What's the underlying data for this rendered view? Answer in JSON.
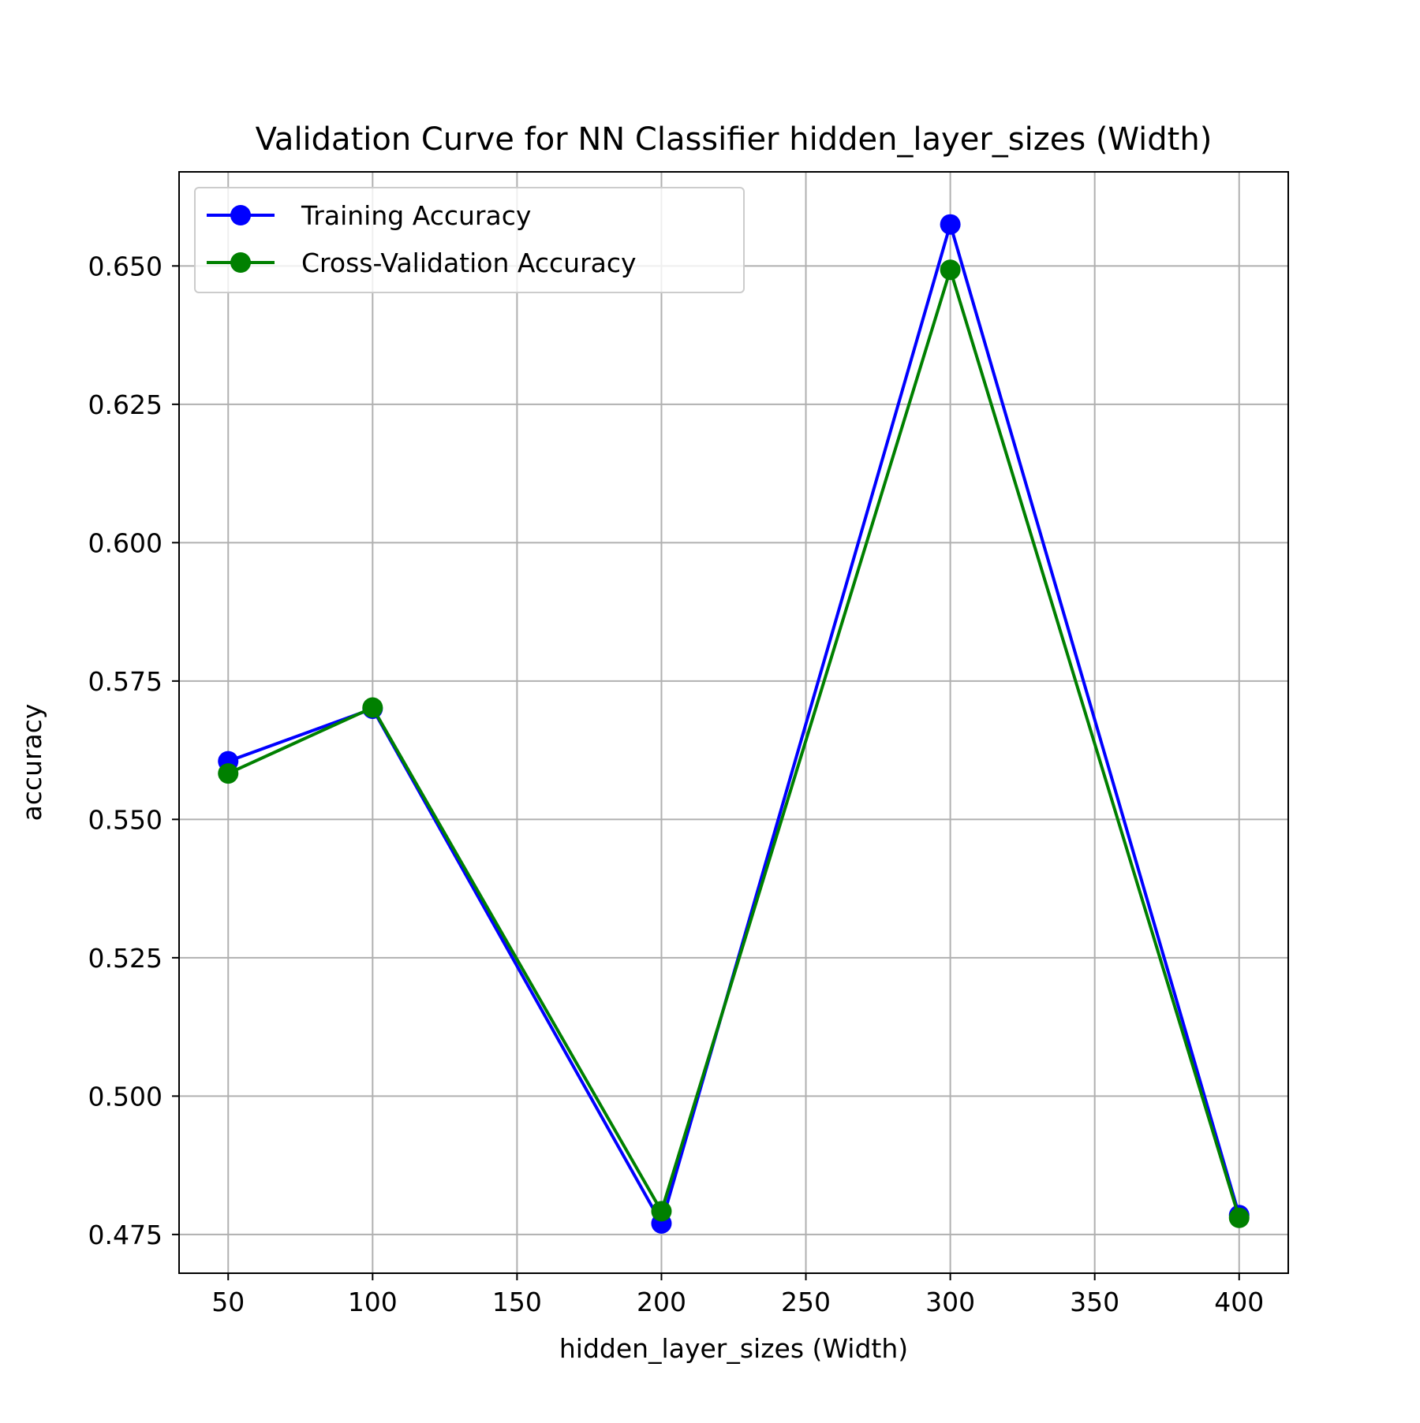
{
  "chart_data": {
    "type": "line",
    "title": "Validation Curve for NN Classifier hidden_layer_sizes (Width)",
    "xlabel": "hidden_layer_sizes (Width)",
    "ylabel": "accuracy",
    "x": [
      50,
      100,
      200,
      300,
      400
    ],
    "xlim": [
      33,
      417
    ],
    "ylim": [
      0.468,
      0.667
    ],
    "xticks": [
      50,
      100,
      150,
      200,
      250,
      300,
      350,
      400
    ],
    "xtick_labels": [
      "50",
      "100",
      "150",
      "200",
      "250",
      "300",
      "350",
      "400"
    ],
    "yticks": [
      0.475,
      0.5,
      0.525,
      0.55,
      0.575,
      0.6,
      0.625,
      0.65
    ],
    "ytick_labels": [
      "0.475",
      "0.500",
      "0.525",
      "0.550",
      "0.575",
      "0.600",
      "0.625",
      "0.650"
    ],
    "grid": true,
    "legend_position": "upper-left",
    "series": [
      {
        "name": "Training Accuracy",
        "color": "#0000ff",
        "marker": "circle",
        "values": [
          0.5605,
          0.57,
          0.477,
          0.6575,
          0.4785
        ]
      },
      {
        "name": "Cross-Validation Accuracy",
        "color": "#008000",
        "marker": "circle",
        "values": [
          0.5583,
          0.5702,
          0.4792,
          0.6493,
          0.478
        ]
      }
    ]
  }
}
